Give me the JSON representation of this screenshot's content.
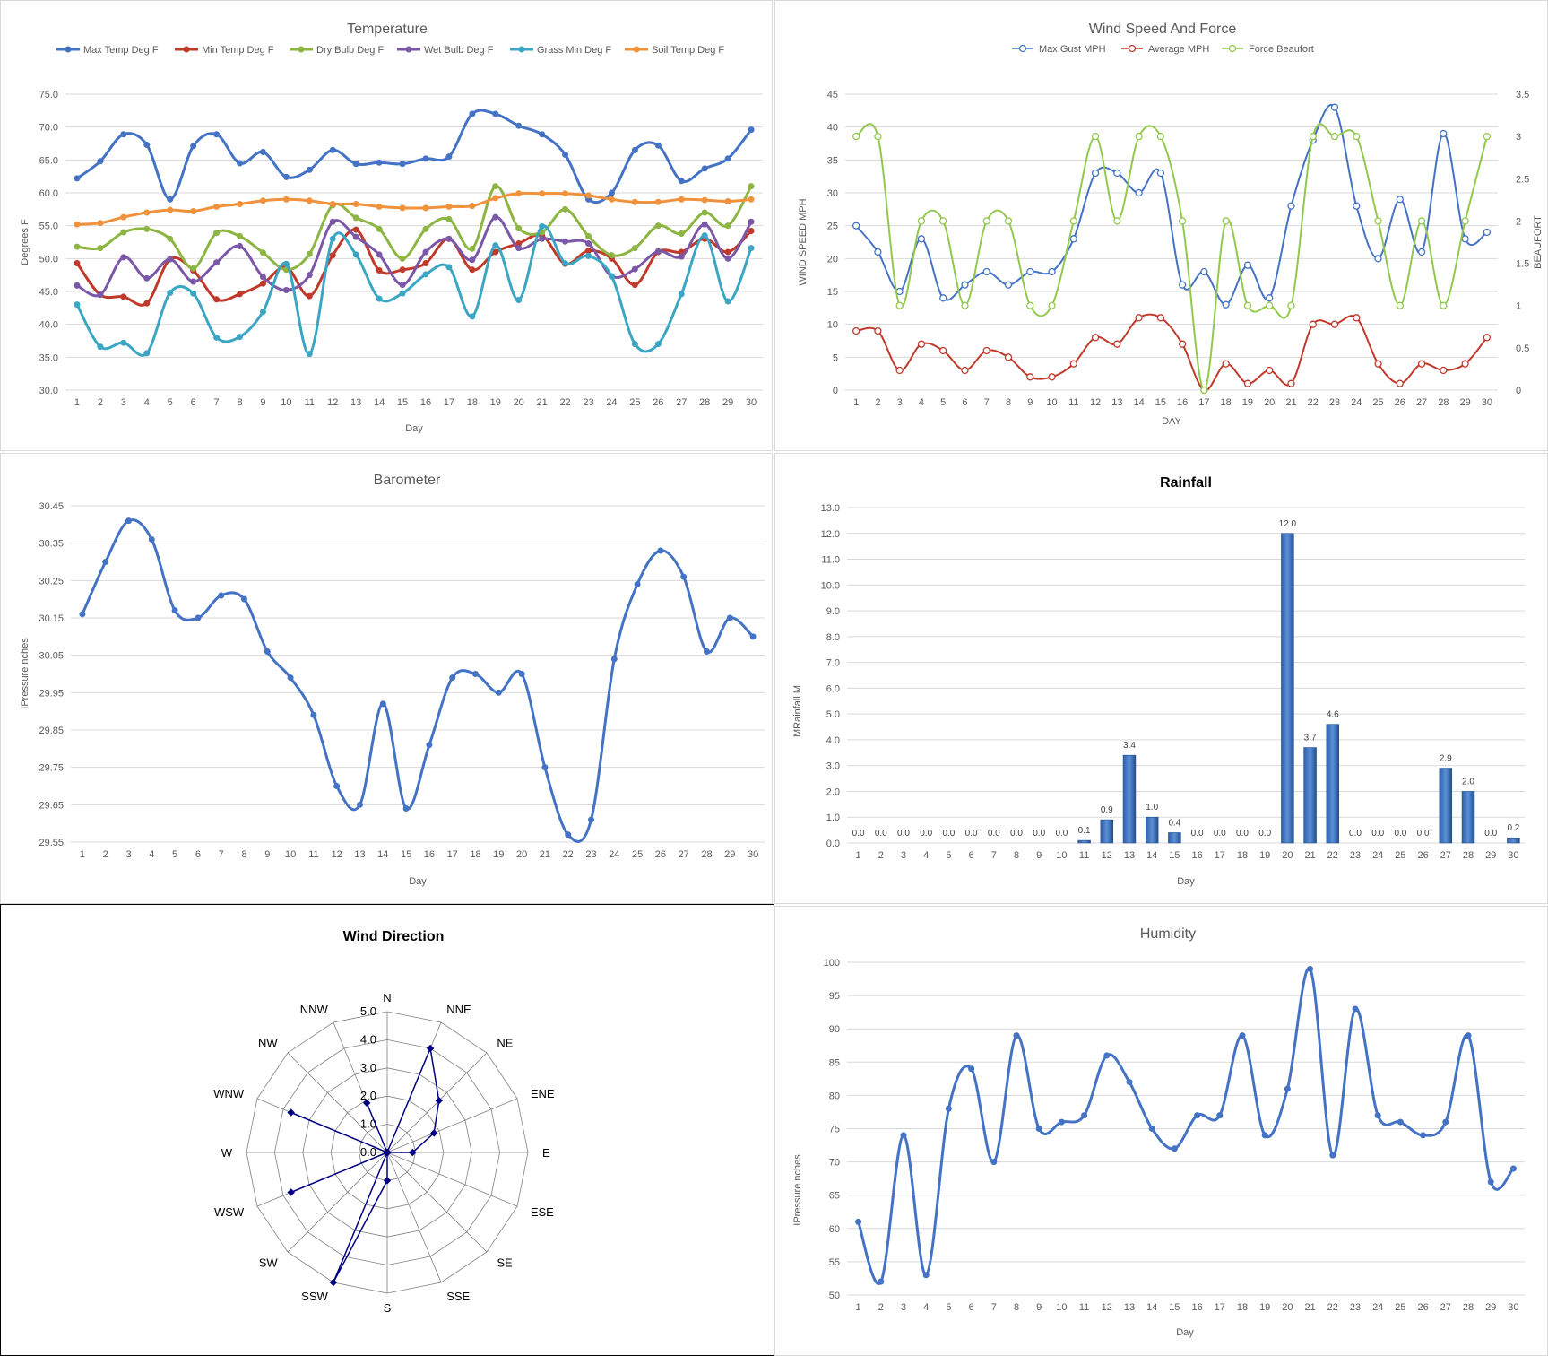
{
  "days": [
    1,
    2,
    3,
    4,
    5,
    6,
    7,
    8,
    9,
    10,
    11,
    12,
    13,
    14,
    15,
    16,
    17,
    18,
    19,
    20,
    21,
    22,
    23,
    24,
    25,
    26,
    27,
    28,
    29,
    30
  ],
  "chart_data": [
    {
      "id": "temperature",
      "type": "line",
      "title": "Temperature",
      "xlabel": "Day",
      "ylabel": "Degrees F",
      "ylim": [
        30,
        75
      ],
      "yticks": [
        "30.0",
        "35.0",
        "40.0",
        "45.0",
        "50.0",
        "55.0",
        "60.0",
        "65.0",
        "70.0",
        "75.0"
      ],
      "legend": "top",
      "grid": true,
      "series": [
        {
          "name": "Max Temp Deg F",
          "color": "#4472c4",
          "values": [
            62.2,
            64.8,
            68.9,
            67.3,
            59.0,
            67.1,
            68.9,
            64.5,
            66.2,
            62.4,
            63.5,
            66.5,
            64.4,
            64.6,
            64.4,
            65.2,
            65.5,
            72.0,
            72.0,
            70.2,
            68.9,
            65.8,
            59.0,
            60.0,
            66.5,
            67.2,
            61.8,
            63.7,
            65.2,
            69.6
          ]
        },
        {
          "name": "Min Temp Deg F",
          "color": "#c0392b",
          "values": [
            49.3,
            44.5,
            44.2,
            43.2,
            49.9,
            48.2,
            43.8,
            44.6,
            46.2,
            48.7,
            44.3,
            50.5,
            54.4,
            48.2,
            48.3,
            49.3,
            53.0,
            48.3,
            51.0,
            52.3,
            53.5,
            49.2,
            51.2,
            50.0,
            46.0,
            51.0,
            51.0,
            53.0,
            51.0,
            54.2
          ]
        },
        {
          "name": "Dry Bulb Deg F",
          "color": "#8db542",
          "values": [
            51.8,
            51.6,
            54.0,
            54.5,
            53.0,
            48.5,
            53.9,
            53.4,
            50.9,
            48.3,
            50.7,
            58.1,
            56.2,
            54.5,
            50.0,
            54.5,
            56.0,
            51.5,
            61.0,
            54.6,
            54.0,
            57.5,
            53.4,
            50.5,
            51.6,
            55.0,
            53.8,
            57.0,
            55.0,
            61.0
          ]
        },
        {
          "name": "Wet Bulb Deg F",
          "color": "#7b57a8",
          "values": [
            45.9,
            44.5,
            50.2,
            47.0,
            49.9,
            46.5,
            49.4,
            51.9,
            47.2,
            45.2,
            47.5,
            55.6,
            53.3,
            50.6,
            46.0,
            51.0,
            53.0,
            49.8,
            56.3,
            51.6,
            53.0,
            52.6,
            52.3,
            47.3,
            48.4,
            51.1,
            50.3,
            55.2,
            50.0,
            55.6
          ]
        },
        {
          "name": "Grass Min Deg F",
          "color": "#3ba6c4",
          "values": [
            43.0,
            36.6,
            37.2,
            35.6,
            44.8,
            44.7,
            38.0,
            38.1,
            41.9,
            49.2,
            35.5,
            53.0,
            50.6,
            43.9,
            44.7,
            47.6,
            48.7,
            41.2,
            52.0,
            43.7,
            54.9,
            49.3,
            50.4,
            47.3,
            37.0,
            37.0,
            44.6,
            53.5,
            43.5,
            51.6
          ]
        },
        {
          "name": "Soil Temp Deg F",
          "color": "#f0913b",
          "values": [
            55.2,
            55.4,
            56.3,
            57.0,
            57.4,
            57.2,
            57.9,
            58.3,
            58.8,
            59.0,
            58.8,
            58.3,
            58.3,
            57.9,
            57.7,
            57.7,
            57.9,
            58.0,
            59.2,
            59.9,
            59.9,
            59.9,
            59.6,
            59.0,
            58.6,
            58.6,
            59.0,
            58.9,
            58.7,
            59.0
          ]
        }
      ]
    },
    {
      "id": "wind",
      "type": "line",
      "title": "Wind Speed And Force",
      "xlabel": "DAY",
      "ylabel": "WIND SPEED MPH",
      "y2label": "BEAUFORT",
      "ylim": [
        0,
        45
      ],
      "y2lim": [
        0,
        3.5
      ],
      "yticks": [
        "0",
        "5",
        "10",
        "15",
        "20",
        "25",
        "30",
        "35",
        "40",
        "45"
      ],
      "y2ticks": [
        "0",
        "0.5",
        "1",
        "1.5",
        "2",
        "2.5",
        "3",
        "3.5"
      ],
      "legend": "top",
      "grid": true,
      "series": [
        {
          "name": "Max Gust MPH",
          "axis": "left",
          "color": "#4472c4",
          "values": [
            25,
            21,
            15,
            23,
            14,
            16,
            18,
            16,
            18,
            18,
            23,
            33,
            33,
            30,
            33,
            16,
            18,
            13,
            19,
            14,
            28,
            38,
            43,
            28,
            20,
            29,
            21,
            39,
            23,
            24
          ]
        },
        {
          "name": "Average MPH",
          "axis": "left",
          "color": "#c0392b",
          "values": [
            9,
            9,
            3,
            7,
            6,
            3,
            6,
            5,
            2,
            2,
            4,
            8,
            7,
            11,
            11,
            7,
            0,
            4,
            1,
            3,
            1,
            10,
            10,
            11,
            4,
            1,
            4,
            3,
            4,
            8
          ]
        },
        {
          "name": "Force Beaufort",
          "axis": "right",
          "color": "#92c84d",
          "values": [
            3,
            3,
            1,
            2,
            2,
            1,
            2,
            2,
            1,
            1,
            2,
            3,
            2,
            3,
            3,
            2,
            0,
            2,
            1,
            1,
            1,
            3,
            3,
            3,
            2,
            1,
            2,
            1,
            2,
            3
          ]
        }
      ]
    },
    {
      "id": "barometer",
      "type": "line",
      "title": "Barometer",
      "xlabel": "Day",
      "ylabel": "IPressure nches",
      "ylim": [
        29.55,
        30.45
      ],
      "yticks": [
        "29.55",
        "29.65",
        "29.75",
        "29.85",
        "29.95",
        "30.05",
        "30.15",
        "30.25",
        "30.35",
        "30.45"
      ],
      "grid": true,
      "series": [
        {
          "color": "#4472c4",
          "values": [
            30.16,
            30.3,
            30.41,
            30.36,
            30.17,
            30.15,
            30.21,
            30.2,
            30.06,
            29.99,
            29.89,
            29.7,
            29.65,
            29.92,
            29.64,
            29.81,
            29.99,
            30.0,
            29.95,
            30.0,
            29.75,
            29.57,
            29.61,
            30.04,
            30.24,
            30.33,
            30.26,
            30.06,
            30.15,
            30.1
          ]
        }
      ]
    },
    {
      "id": "rainfall",
      "type": "bar",
      "title": "Rainfall",
      "xlabel": "Day",
      "ylabel": "MRainfall M",
      "ylim": [
        0,
        13
      ],
      "yticks": [
        "0.0",
        "1.0",
        "2.0",
        "3.0",
        "4.0",
        "5.0",
        "6.0",
        "7.0",
        "8.0",
        "9.0",
        "10.0",
        "11.0",
        "12.0",
        "13.0"
      ],
      "grid": true,
      "values": [
        0,
        0,
        0,
        0,
        0,
        0,
        0,
        0,
        0,
        0,
        0.1,
        0.9,
        3.4,
        1.0,
        0.4,
        0,
        0,
        0,
        0,
        12.0,
        3.7,
        4.6,
        0,
        0,
        0,
        0,
        2.9,
        2.0,
        0,
        0.2
      ],
      "data_labels": [
        "0.0",
        "0.0",
        "0.0",
        "0.0",
        "0.0",
        "0.0",
        "0.0",
        "0.0",
        "0.0",
        "0.0",
        "0.1",
        "0.9",
        "3.4",
        "1.0",
        "0.4",
        "0.0",
        "0.0",
        "0.0",
        "0.0",
        "12.0",
        "3.7",
        "4.6",
        "0.0",
        "0.0",
        "0.0",
        "0.0",
        "2.9",
        "2.0",
        "0.0",
        "0.2"
      ],
      "color": "#4472c4"
    },
    {
      "id": "wind_direction",
      "type": "radar",
      "title": "Wind Direction",
      "directions": [
        "N",
        "NNE",
        "NE",
        "ENE",
        "E",
        "ESE",
        "SE",
        "SSE",
        "S",
        "SSW",
        "SW",
        "WSW",
        "W",
        "WNW",
        "NW",
        "NNW"
      ],
      "values": [
        0,
        4.0,
        2.6,
        1.8,
        0.9,
        0,
        0,
        0,
        1.0,
        5.0,
        0,
        3.7,
        0,
        3.7,
        0,
        1.9
      ],
      "rlim": [
        0,
        5
      ],
      "rticks": [
        "0.0",
        "1.0",
        "2.0",
        "3.0",
        "4.0",
        "5.0"
      ],
      "color": "#000080"
    },
    {
      "id": "humidity",
      "type": "line",
      "title": "Humidity",
      "xlabel": "Day",
      "ylabel": "IPressure nches",
      "ylim": [
        50,
        100
      ],
      "yticks": [
        "50",
        "55",
        "60",
        "65",
        "70",
        "75",
        "80",
        "85",
        "90",
        "95",
        "100"
      ],
      "grid": true,
      "series": [
        {
          "color": "#4472c4",
          "values": [
            61,
            52,
            74,
            53,
            78,
            84,
            70,
            89,
            75,
            76,
            77,
            86,
            82,
            75,
            72,
            77,
            77,
            89,
            74,
            81,
            99,
            71,
            93,
            77,
            76,
            74,
            76,
            89,
            67,
            69
          ]
        }
      ]
    }
  ]
}
